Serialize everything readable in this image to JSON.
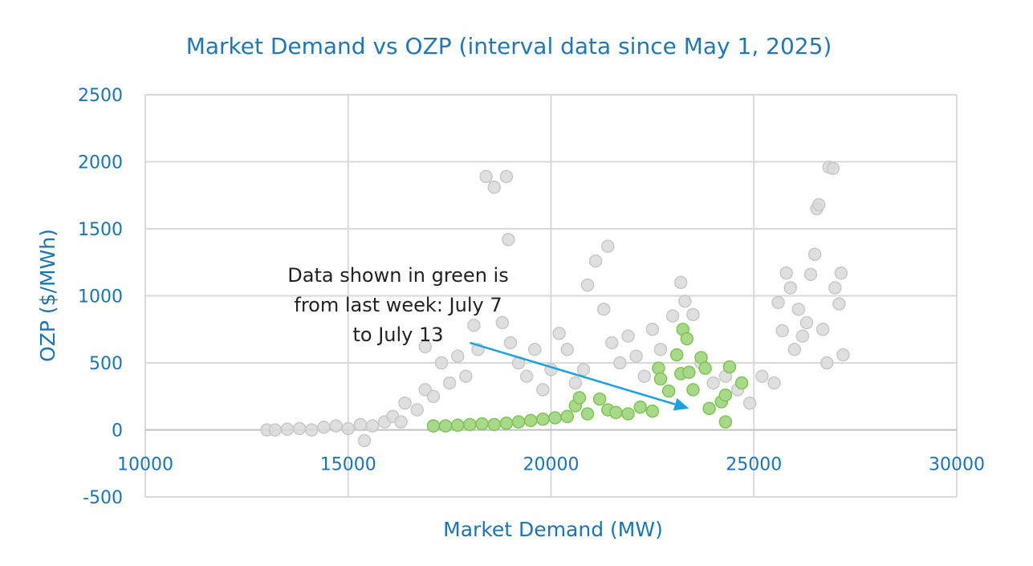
{
  "chart_data": {
    "type": "scatter",
    "title": "Market Demand vs OZP (interval data since May 1, 2025)",
    "xlabel": "Market Demand (MW)",
    "ylabel": "OZP ($/MWh)",
    "xlim": [
      10000,
      30000
    ],
    "ylim": [
      -500,
      2500
    ],
    "x_ticks": [
      10000,
      15000,
      20000,
      25000,
      30000
    ],
    "y_ticks": [
      -500,
      0,
      500,
      1000,
      1500,
      2000,
      2500
    ],
    "x_tick_labels": [
      "10000",
      "15000",
      "20000",
      "25000",
      "30000"
    ],
    "y_tick_labels": [
      "-500",
      "0",
      "500",
      "1000",
      "1500",
      "2000",
      "2500"
    ],
    "grid": true,
    "legend": "none",
    "annotation": {
      "lines": [
        "Data shown in green is",
        "from last week: July 7",
        "to July 13"
      ],
      "arrow_from": [
        18000,
        650
      ],
      "arrow_to": [
        23400,
        160
      ]
    },
    "colors": {
      "title": "#1f77b4",
      "axis_text": "#1a75b5",
      "grey_fill": "#d9d9d9",
      "grey_stroke": "#c8c8c8",
      "green_fill": "#a8d98a",
      "green_stroke": "#7fc451",
      "arrow": "#1ba1e2",
      "grid": "#d9d9d9"
    },
    "series": [
      {
        "values": [
          {
            "x": 13000,
            "y": 0
          },
          {
            "x": 13200,
            "y": 0
          },
          {
            "x": 13500,
            "y": 5
          },
          {
            "x": 13800,
            "y": 10
          },
          {
            "x": 14100,
            "y": 0
          },
          {
            "x": 14400,
            "y": 20
          },
          {
            "x": 14700,
            "y": 30
          },
          {
            "x": 15000,
            "y": 10
          },
          {
            "x": 15300,
            "y": 40
          },
          {
            "x": 15400,
            "y": -80
          },
          {
            "x": 15600,
            "y": 30
          },
          {
            "x": 15900,
            "y": 60
          },
          {
            "x": 16100,
            "y": 100
          },
          {
            "x": 16300,
            "y": 60
          },
          {
            "x": 16400,
            "y": 200
          },
          {
            "x": 16700,
            "y": 150
          },
          {
            "x": 16900,
            "y": 300
          },
          {
            "x": 16900,
            "y": 620
          },
          {
            "x": 17100,
            "y": 250
          },
          {
            "x": 17300,
            "y": 500
          },
          {
            "x": 17500,
            "y": 350
          },
          {
            "x": 17700,
            "y": 550
          },
          {
            "x": 17900,
            "y": 400
          },
          {
            "x": 18100,
            "y": 780
          },
          {
            "x": 18200,
            "y": 600
          },
          {
            "x": 18400,
            "y": 1890
          },
          {
            "x": 18600,
            "y": 1810
          },
          {
            "x": 18800,
            "y": 800
          },
          {
            "x": 18900,
            "y": 1890
          },
          {
            "x": 18950,
            "y": 1420
          },
          {
            "x": 19000,
            "y": 650
          },
          {
            "x": 19200,
            "y": 500
          },
          {
            "x": 19400,
            "y": 400
          },
          {
            "x": 19600,
            "y": 600
          },
          {
            "x": 19800,
            "y": 300
          },
          {
            "x": 20000,
            "y": 450
          },
          {
            "x": 20200,
            "y": 720
          },
          {
            "x": 20400,
            "y": 600
          },
          {
            "x": 20600,
            "y": 350
          },
          {
            "x": 20800,
            "y": 450
          },
          {
            "x": 20900,
            "y": 1080
          },
          {
            "x": 21100,
            "y": 1260
          },
          {
            "x": 21300,
            "y": 900
          },
          {
            "x": 21400,
            "y": 1370
          },
          {
            "x": 21500,
            "y": 650
          },
          {
            "x": 21700,
            "y": 500
          },
          {
            "x": 21900,
            "y": 700
          },
          {
            "x": 22100,
            "y": 550
          },
          {
            "x": 22300,
            "y": 400
          },
          {
            "x": 22500,
            "y": 750
          },
          {
            "x": 22700,
            "y": 600
          },
          {
            "x": 23000,
            "y": 850
          },
          {
            "x": 23200,
            "y": 1100
          },
          {
            "x": 23300,
            "y": 960
          },
          {
            "x": 23500,
            "y": 860
          },
          {
            "x": 23700,
            "y": 500
          },
          {
            "x": 24000,
            "y": 350
          },
          {
            "x": 24300,
            "y": 400
          },
          {
            "x": 24600,
            "y": 300
          },
          {
            "x": 24900,
            "y": 200
          },
          {
            "x": 25200,
            "y": 400
          },
          {
            "x": 25500,
            "y": 350
          },
          {
            "x": 25600,
            "y": 950
          },
          {
            "x": 25700,
            "y": 740
          },
          {
            "x": 25800,
            "y": 1170
          },
          {
            "x": 25900,
            "y": 1060
          },
          {
            "x": 26000,
            "y": 600
          },
          {
            "x": 26100,
            "y": 900
          },
          {
            "x": 26200,
            "y": 700
          },
          {
            "x": 26300,
            "y": 800
          },
          {
            "x": 26400,
            "y": 1160
          },
          {
            "x": 26500,
            "y": 1310
          },
          {
            "x": 26550,
            "y": 1650
          },
          {
            "x": 26600,
            "y": 1680
          },
          {
            "x": 26700,
            "y": 750
          },
          {
            "x": 26800,
            "y": 500
          },
          {
            "x": 26850,
            "y": 1960
          },
          {
            "x": 26950,
            "y": 1950
          },
          {
            "x": 27000,
            "y": 1060
          },
          {
            "x": 27100,
            "y": 940
          },
          {
            "x": 27150,
            "y": 1170
          },
          {
            "x": 27200,
            "y": 560
          }
        ]
      },
      {
        "values": [
          {
            "x": 17100,
            "y": 30
          },
          {
            "x": 17400,
            "y": 30
          },
          {
            "x": 17700,
            "y": 35
          },
          {
            "x": 18000,
            "y": 40
          },
          {
            "x": 18300,
            "y": 45
          },
          {
            "x": 18600,
            "y": 40
          },
          {
            "x": 18900,
            "y": 50
          },
          {
            "x": 19200,
            "y": 60
          },
          {
            "x": 19500,
            "y": 70
          },
          {
            "x": 19800,
            "y": 80
          },
          {
            "x": 20100,
            "y": 90
          },
          {
            "x": 20400,
            "y": 100
          },
          {
            "x": 20600,
            "y": 180
          },
          {
            "x": 20700,
            "y": 240
          },
          {
            "x": 20900,
            "y": 120
          },
          {
            "x": 21200,
            "y": 230
          },
          {
            "x": 21400,
            "y": 150
          },
          {
            "x": 21600,
            "y": 130
          },
          {
            "x": 21900,
            "y": 120
          },
          {
            "x": 22200,
            "y": 170
          },
          {
            "x": 22500,
            "y": 140
          },
          {
            "x": 22650,
            "y": 460
          },
          {
            "x": 22700,
            "y": 380
          },
          {
            "x": 22900,
            "y": 290
          },
          {
            "x": 23100,
            "y": 560
          },
          {
            "x": 23200,
            "y": 420
          },
          {
            "x": 23250,
            "y": 750
          },
          {
            "x": 23350,
            "y": 680
          },
          {
            "x": 23400,
            "y": 430
          },
          {
            "x": 23500,
            "y": 300
          },
          {
            "x": 23700,
            "y": 540
          },
          {
            "x": 23800,
            "y": 460
          },
          {
            "x": 23900,
            "y": 160
          },
          {
            "x": 24200,
            "y": 210
          },
          {
            "x": 24300,
            "y": 260
          },
          {
            "x": 24400,
            "y": 470
          },
          {
            "x": 24700,
            "y": 350
          },
          {
            "x": 24300,
            "y": 60
          }
        ]
      }
    ]
  }
}
